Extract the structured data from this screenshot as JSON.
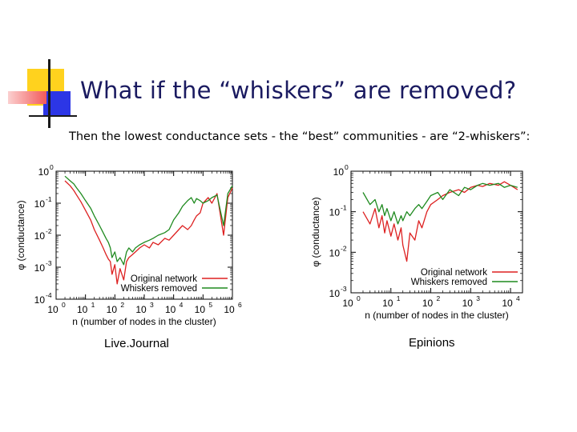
{
  "slide": {
    "title": "What if the “whiskers” are removed?",
    "subtitle": "Then the lowest conductance sets - the “best” communities - are “2-whiskers”:",
    "captions": [
      "Live.Journal",
      "Epinions"
    ],
    "colors": {
      "title": "#1a1a60",
      "deco_yellow": "#ffd21e",
      "deco_blue": "#2c36e6",
      "deco_red": "#f25a5a",
      "line_red": "#dd2020",
      "line_green": "#1f8a1f"
    }
  },
  "chart_data": [
    {
      "type": "line",
      "title": "",
      "xlabel": "n (number of nodes in the cluster)",
      "ylabel": "φ (conductance)",
      "xscale": "log",
      "yscale": "log",
      "xlim": [
        1,
        1000000
      ],
      "ylim": [
        0.0001,
        1
      ],
      "xticks": [
        {
          "b": "10",
          "e": "0"
        },
        {
          "b": "10",
          "e": "1"
        },
        {
          "b": "10",
          "e": "2"
        },
        {
          "b": "10",
          "e": "3"
        },
        {
          "b": "10",
          "e": "4"
        },
        {
          "b": "10",
          "e": "5"
        },
        {
          "b": "10",
          "e": "6"
        }
      ],
      "yticks": [
        {
          "b": "10",
          "e": "-4"
        },
        {
          "b": "10",
          "e": "-3"
        },
        {
          "b": "10",
          "e": "-2"
        },
        {
          "b": "10",
          "e": "-1"
        },
        {
          "b": "10",
          "e": "0"
        }
      ],
      "legend_position": "bottom-right",
      "series": [
        {
          "name": "Original network",
          "color": "#dd2020",
          "x": [
            2,
            3,
            4,
            5,
            7,
            10,
            15,
            20,
            30,
            40,
            50,
            60,
            70,
            80,
            100,
            120,
            150,
            200,
            250,
            300,
            400,
            500,
            700,
            1000,
            1500,
            2000,
            3000,
            5000,
            7000,
            10000,
            15000,
            20000,
            30000,
            40000,
            50000,
            60000,
            80000,
            100000,
            150000,
            200000,
            300000,
            500000,
            700000,
            1000000
          ],
          "y": [
            0.5,
            0.35,
            0.25,
            0.18,
            0.11,
            0.06,
            0.03,
            0.015,
            0.007,
            0.004,
            0.0025,
            0.0018,
            0.0015,
            0.0006,
            0.0012,
            0.0003,
            0.0009,
            0.0004,
            0.0015,
            0.002,
            0.0025,
            0.003,
            0.004,
            0.005,
            0.004,
            0.006,
            0.005,
            0.008,
            0.007,
            0.01,
            0.015,
            0.02,
            0.015,
            0.02,
            0.03,
            0.04,
            0.05,
            0.1,
            0.15,
            0.1,
            0.2,
            0.01,
            0.15,
            0.3
          ]
        },
        {
          "name": "Whiskers removed",
          "color": "#1f8a1f",
          "x": [
            2,
            3,
            4,
            5,
            7,
            10,
            15,
            20,
            30,
            40,
            50,
            60,
            70,
            80,
            100,
            120,
            150,
            200,
            250,
            300,
            400,
            500,
            700,
            1000,
            1500,
            2000,
            3000,
            5000,
            7000,
            10000,
            15000,
            20000,
            30000,
            40000,
            50000,
            60000,
            80000,
            100000,
            150000,
            200000,
            300000,
            500000,
            700000,
            1000000
          ],
          "y": [
            0.7,
            0.5,
            0.4,
            0.3,
            0.2,
            0.12,
            0.07,
            0.04,
            0.02,
            0.012,
            0.008,
            0.006,
            0.004,
            0.002,
            0.003,
            0.0015,
            0.002,
            0.0012,
            0.003,
            0.004,
            0.003,
            0.004,
            0.005,
            0.006,
            0.007,
            0.008,
            0.01,
            0.012,
            0.015,
            0.03,
            0.05,
            0.08,
            0.12,
            0.15,
            0.1,
            0.14,
            0.12,
            0.1,
            0.12,
            0.15,
            0.18,
            0.02,
            0.2,
            0.35
          ]
        }
      ]
    },
    {
      "type": "line",
      "title": "",
      "xlabel": "n (number of nodes in the cluster)",
      "ylabel": "φ (conductance)",
      "xscale": "log",
      "yscale": "log",
      "xlim": [
        1,
        20000
      ],
      "ylim": [
        0.001,
        1
      ],
      "xticks": [
        {
          "b": "10",
          "e": "0"
        },
        {
          "b": "10",
          "e": "1"
        },
        {
          "b": "10",
          "e": "2"
        },
        {
          "b": "10",
          "e": "3"
        },
        {
          "b": "10",
          "e": "4"
        }
      ],
      "yticks": [
        {
          "b": "10",
          "e": "-3"
        },
        {
          "b": "10",
          "e": "-2"
        },
        {
          "b": "10",
          "e": "-1"
        },
        {
          "b": "10",
          "e": "0"
        }
      ],
      "legend_position": "bottom-right",
      "series": [
        {
          "name": "Original network",
          "color": "#dd2020",
          "x": [
            2,
            3,
            4,
            5,
            6,
            7,
            8,
            10,
            12,
            15,
            18,
            20,
            25,
            30,
            40,
            50,
            60,
            80,
            100,
            150,
            200,
            300,
            500,
            700,
            1000,
            1500,
            2000,
            3000,
            5000,
            7000,
            10000,
            15000
          ],
          "y": [
            0.1,
            0.05,
            0.12,
            0.04,
            0.08,
            0.03,
            0.06,
            0.025,
            0.05,
            0.02,
            0.04,
            0.015,
            0.006,
            0.03,
            0.02,
            0.06,
            0.04,
            0.1,
            0.15,
            0.2,
            0.25,
            0.3,
            0.35,
            0.3,
            0.4,
            0.45,
            0.42,
            0.5,
            0.45,
            0.55,
            0.45,
            0.35
          ]
        },
        {
          "name": "Whiskers removed",
          "color": "#1f8a1f",
          "x": [
            2,
            3,
            4,
            5,
            6,
            7,
            8,
            10,
            12,
            15,
            18,
            20,
            25,
            30,
            40,
            50,
            60,
            80,
            100,
            150,
            200,
            300,
            500,
            700,
            1000,
            1500,
            2000,
            3000,
            5000,
            7000,
            10000,
            15000
          ],
          "y": [
            0.3,
            0.15,
            0.2,
            0.1,
            0.15,
            0.08,
            0.12,
            0.06,
            0.1,
            0.05,
            0.08,
            0.06,
            0.1,
            0.08,
            0.12,
            0.15,
            0.12,
            0.18,
            0.25,
            0.3,
            0.2,
            0.35,
            0.25,
            0.4,
            0.35,
            0.45,
            0.5,
            0.45,
            0.5,
            0.4,
            0.45,
            0.4
          ]
        }
      ]
    }
  ]
}
